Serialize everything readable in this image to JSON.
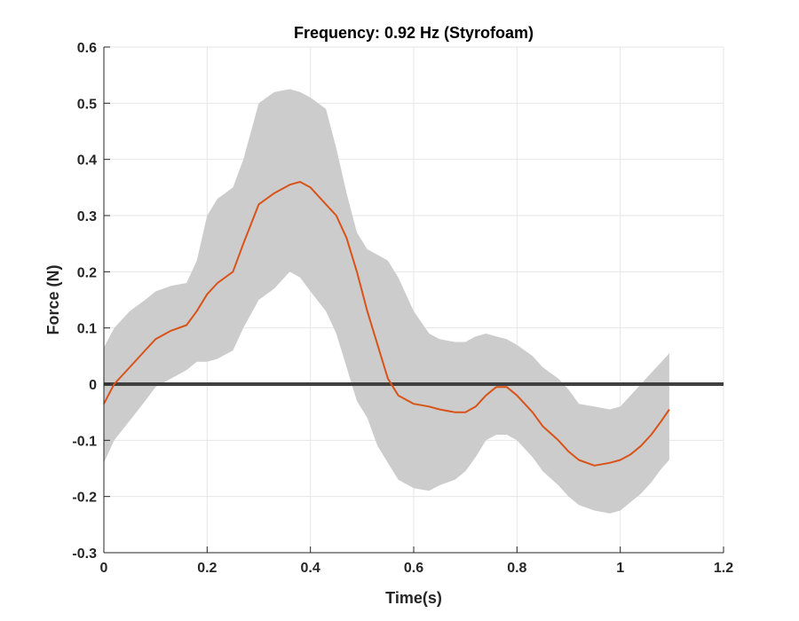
{
  "chart_data": {
    "type": "line",
    "title": "Frequency: 0.92 Hz (Styrofoam)",
    "xlabel": "Time(s)",
    "ylabel": "Force (N)",
    "xlim": [
      0,
      1.2
    ],
    "ylim": [
      -0.3,
      0.6
    ],
    "xticks": [
      0,
      0.2,
      0.4,
      0.6,
      0.8,
      1,
      1.2
    ],
    "xtick_labels": [
      "0",
      "0.2",
      "0.4",
      "0.6",
      "0.8",
      "1",
      "1.2"
    ],
    "yticks": [
      -0.3,
      -0.2,
      -0.1,
      0,
      0.1,
      0.2,
      0.3,
      0.4,
      0.5,
      0.6
    ],
    "ytick_labels": [
      "-0.3",
      "-0.2",
      "-0.1",
      "0",
      "0.1",
      "0.2",
      "0.3",
      "0.4",
      "0.5",
      "0.6"
    ],
    "grid": true,
    "legend": "none",
    "colors": {
      "mean_line": "#d95319",
      "band": "#cccccc",
      "zero_line": "#404040",
      "grid": "#e6e6e6",
      "axis": "#262626"
    },
    "zero_line": {
      "y": 0,
      "x_range": [
        0,
        1.2
      ]
    },
    "series": [
      {
        "x": [
          0,
          0.02,
          0.05,
          0.08,
          0.1,
          0.13,
          0.16,
          0.18,
          0.2,
          0.22,
          0.25,
          0.27,
          0.3,
          0.33,
          0.36,
          0.38,
          0.4,
          0.43,
          0.45,
          0.47,
          0.49,
          0.51,
          0.53,
          0.55,
          0.57,
          0.6,
          0.63,
          0.65,
          0.68,
          0.7,
          0.72,
          0.74,
          0.76,
          0.78,
          0.8,
          0.83,
          0.85,
          0.88,
          0.9,
          0.92,
          0.95,
          0.98,
          1.0,
          1.02,
          1.04,
          1.06,
          1.08,
          1.095
        ],
        "y": [
          -0.035,
          0.0,
          0.03,
          0.06,
          0.08,
          0.095,
          0.105,
          0.13,
          0.16,
          0.18,
          0.2,
          0.25,
          0.32,
          0.34,
          0.355,
          0.36,
          0.35,
          0.32,
          0.3,
          0.26,
          0.2,
          0.13,
          0.07,
          0.01,
          -0.02,
          -0.035,
          -0.04,
          -0.045,
          -0.05,
          -0.05,
          -0.04,
          -0.02,
          -0.005,
          -0.005,
          -0.02,
          -0.05,
          -0.075,
          -0.1,
          -0.12,
          -0.135,
          -0.145,
          -0.14,
          -0.135,
          -0.125,
          -0.11,
          -0.09,
          -0.065,
          -0.045
        ]
      }
    ],
    "band": {
      "x": [
        0,
        0.02,
        0.05,
        0.08,
        0.1,
        0.13,
        0.16,
        0.18,
        0.2,
        0.22,
        0.25,
        0.27,
        0.3,
        0.33,
        0.36,
        0.38,
        0.4,
        0.43,
        0.45,
        0.47,
        0.49,
        0.51,
        0.53,
        0.55,
        0.57,
        0.6,
        0.63,
        0.65,
        0.68,
        0.7,
        0.72,
        0.74,
        0.76,
        0.78,
        0.8,
        0.83,
        0.85,
        0.88,
        0.9,
        0.92,
        0.95,
        0.98,
        1.0,
        1.02,
        1.04,
        1.06,
        1.08,
        1.095
      ],
      "upper": [
        0.065,
        0.1,
        0.13,
        0.15,
        0.165,
        0.175,
        0.18,
        0.22,
        0.3,
        0.33,
        0.35,
        0.4,
        0.5,
        0.52,
        0.525,
        0.52,
        0.51,
        0.49,
        0.42,
        0.34,
        0.27,
        0.24,
        0.23,
        0.22,
        0.19,
        0.13,
        0.09,
        0.08,
        0.075,
        0.075,
        0.085,
        0.09,
        0.085,
        0.08,
        0.07,
        0.05,
        0.03,
        0.01,
        -0.01,
        -0.035,
        -0.04,
        -0.045,
        -0.04,
        -0.02,
        0.0,
        0.02,
        0.04,
        0.055
      ],
      "lower": [
        -0.14,
        -0.1,
        -0.065,
        -0.03,
        -0.005,
        0.01,
        0.025,
        0.04,
        0.04,
        0.045,
        0.06,
        0.1,
        0.15,
        0.17,
        0.2,
        0.19,
        0.165,
        0.13,
        0.09,
        0.03,
        -0.03,
        -0.06,
        -0.11,
        -0.14,
        -0.17,
        -0.185,
        -0.19,
        -0.18,
        -0.17,
        -0.155,
        -0.13,
        -0.1,
        -0.09,
        -0.09,
        -0.1,
        -0.13,
        -0.155,
        -0.18,
        -0.2,
        -0.215,
        -0.225,
        -0.23,
        -0.225,
        -0.21,
        -0.195,
        -0.175,
        -0.15,
        -0.135
      ]
    }
  }
}
